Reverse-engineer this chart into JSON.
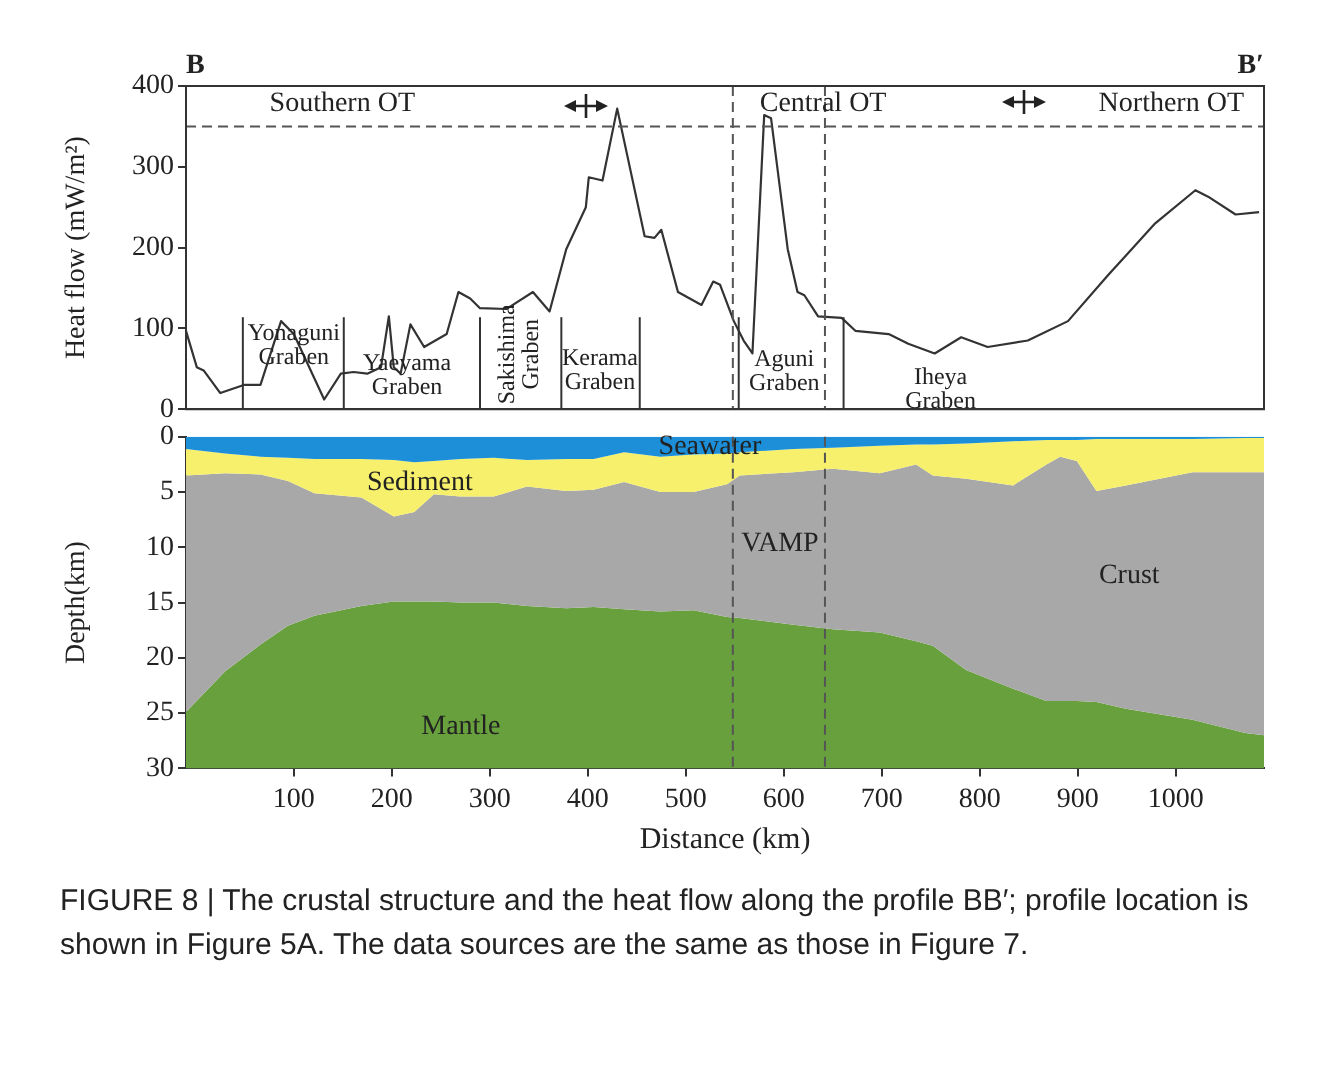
{
  "chart_data": [
    {
      "type": "line",
      "ylabel": "Heat flow (mW/m²)",
      "xlim": [
        -10,
        1090
      ],
      "ylim": [
        0,
        400
      ],
      "yticks": [
        0,
        100,
        200,
        300,
        400
      ],
      "tick_labels": "y",
      "color": "#333333",
      "marker": "none",
      "line_style": "solid",
      "x": [
        -10,
        1,
        8,
        25,
        49,
        66,
        87,
        100,
        131,
        148,
        161,
        175,
        189,
        197,
        202,
        209,
        219,
        233,
        256,
        268,
        280,
        290,
        317,
        344,
        361,
        378,
        398,
        401,
        415,
        430,
        458,
        468,
        475,
        492,
        516,
        528,
        535,
        549,
        559,
        568,
        580,
        587,
        604,
        614,
        621,
        635,
        659,
        673,
        707,
        727,
        754,
        781,
        808,
        849,
        890,
        931,
        979,
        1020,
        1033,
        1061,
        1085
      ],
      "values": [
        97,
        52,
        48,
        20,
        30,
        30,
        109,
        93,
        12,
        44,
        46,
        44,
        52,
        115,
        52,
        44,
        105,
        77,
        93,
        145,
        137,
        125,
        124,
        145,
        121,
        198,
        250,
        287,
        283,
        372,
        214,
        212,
        222,
        145,
        129,
        158,
        154,
        109,
        85,
        69,
        364,
        360,
        198,
        145,
        141,
        115,
        113,
        97,
        93,
        81,
        69,
        89,
        77,
        85,
        109,
        166,
        230,
        271,
        263,
        241,
        244
      ],
      "ref_lines": [
        {
          "axis": "y",
          "value": 350,
          "line_style": "dashed",
          "color": "#555555"
        },
        {
          "axis": "x",
          "value": 548,
          "line_style": "dashed",
          "color": "#555555"
        },
        {
          "axis": "x",
          "value": 642,
          "line_style": "dashed",
          "color": "#555555"
        },
        {
          "axis": "x",
          "value": 48,
          "line_style": "solid",
          "color": "#333333"
        },
        {
          "axis": "x",
          "value": 151,
          "line_style": "solid",
          "color": "#333333"
        },
        {
          "axis": "x",
          "value": 290,
          "line_style": "solid",
          "color": "#333333"
        },
        {
          "axis": "x",
          "value": 373,
          "line_style": "solid",
          "color": "#333333"
        },
        {
          "axis": "x",
          "value": 453,
          "line_style": "solid",
          "color": "#333333"
        },
        {
          "axis": "x",
          "value": 554,
          "line_style": "solid",
          "color": "#333333"
        },
        {
          "axis": "x",
          "value": 661,
          "line_style": "solid",
          "color": "#333333"
        }
      ],
      "annotations": [
        "B",
        "B′",
        "Southern OT",
        "Central OT",
        "Northern OT",
        "Yonaguni\nGraben",
        "Yaeyama\nGraben",
        "Sakishima\nGraben",
        "Kerama\nGraben",
        "Aguni\nGraben",
        "Iheya\nGraben"
      ]
    },
    {
      "type": "area",
      "stacked": true,
      "xlabel": "Distance (km)",
      "ylabel": "Depth(km)",
      "xlim": [
        -10,
        1090
      ],
      "xticks": [
        100,
        200,
        300,
        400,
        500,
        600,
        700,
        800,
        900,
        1000
      ],
      "ylim": [
        30,
        0
      ],
      "yticks": [
        0,
        5,
        10,
        15,
        20,
        25,
        30
      ],
      "x": [
        -10,
        30,
        66,
        94,
        121,
        169,
        202,
        223,
        243,
        270,
        304,
        338,
        378,
        406,
        437,
        474,
        508,
        542,
        555,
        610,
        650,
        698,
        735,
        752,
        786,
        834,
        868,
        882,
        899,
        919,
        949,
        1017,
        1071,
        1090
      ],
      "series": [
        {
          "color": "#1c8fd8",
          "values": [
            1.1,
            1.5,
            1.8,
            1.9,
            2.0,
            2.0,
            2.1,
            2.3,
            2.2,
            2.0,
            1.9,
            2.1,
            2.0,
            2.0,
            1.4,
            1.8,
            1.6,
            1.5,
            1.4,
            1.1,
            1.0,
            0.8,
            0.7,
            0.7,
            0.6,
            0.4,
            0.3,
            0.3,
            0.3,
            0.2,
            0.2,
            0.2,
            0.1,
            0.1
          ]
        },
        {
          "color": "#f6f06c",
          "values": [
            2.4,
            1.8,
            1.6,
            2.1,
            3.1,
            3.5,
            5.1,
            4.5,
            3.0,
            3.4,
            3.5,
            2.4,
            2.9,
            2.8,
            2.7,
            3.2,
            3.4,
            2.8,
            2.1,
            2.1,
            1.9,
            2.5,
            1.8,
            2.8,
            3.2,
            4.0,
            2.2,
            1.5,
            1.9,
            4.7,
            4.2,
            3.0,
            3.1,
            3.1
          ]
        },
        {
          "color": "#a8a8a8",
          "values": [
            21.4,
            17.9,
            15.4,
            13.1,
            11.1,
            9.8,
            7.7,
            8.1,
            9.7,
            9.6,
            9.6,
            10.8,
            10.6,
            10.6,
            11.5,
            10.8,
            10.7,
            12.0,
            12.9,
            13.8,
            14.5,
            14.4,
            16.0,
            15.4,
            17.3,
            18.4,
            21.4,
            22.1,
            21.7,
            19.1,
            20.2,
            22.4,
            23.6,
            23.8
          ]
        },
        {
          "color": "#67a03c",
          "values": [
            5.1,
            8.8,
            11.2,
            12.9,
            13.8,
            14.7,
            15.1,
            15.1,
            15.1,
            15.0,
            15.0,
            14.7,
            14.5,
            14.6,
            14.4,
            14.2,
            14.3,
            13.7,
            13.6,
            13.0,
            12.6,
            12.3,
            11.5,
            11.1,
            8.9,
            7.2,
            6.1,
            6.1,
            6.1,
            6.0,
            5.4,
            4.4,
            3.2,
            3.0
          ]
        }
      ],
      "ref_lines": [
        {
          "axis": "x",
          "value": 548,
          "line_style": "dashed",
          "color": "#555555"
        },
        {
          "axis": "x",
          "value": 642,
          "line_style": "dashed",
          "color": "#555555"
        }
      ],
      "annotations": [
        "Seawater",
        "Sediment",
        "VAMP",
        "Crust",
        "Mantle",
        "FIGURE 8 | The crustal structure and the heat flow along the profile BB′; profile location is shown in Figure 5A. The data sources are the same as those in Figure 7."
      ]
    }
  ]
}
